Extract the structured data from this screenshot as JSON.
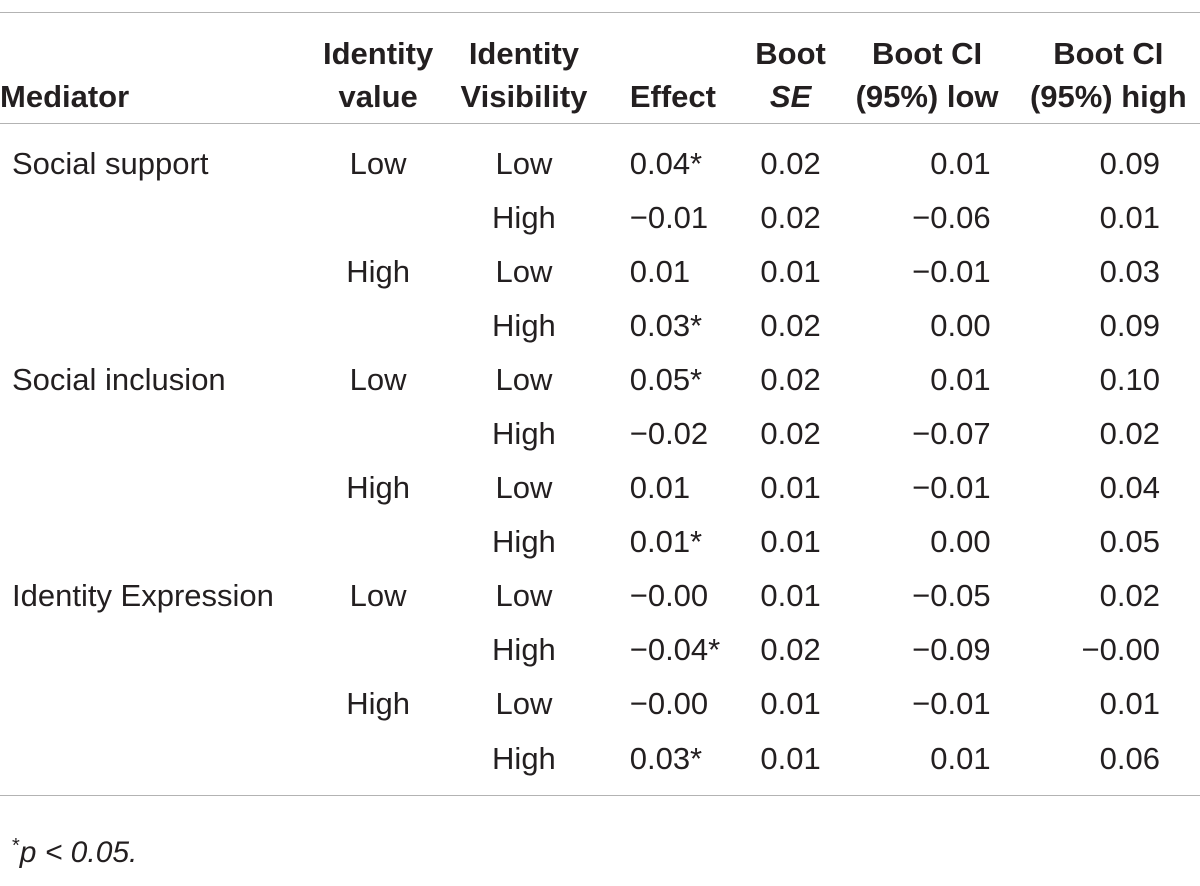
{
  "headers": {
    "mediator": "Mediator",
    "identity_value": [
      "Identity",
      "value"
    ],
    "identity_visibility": [
      "Identity",
      "Visibility"
    ],
    "effect": "Effect",
    "boot_se": [
      "Boot",
      "SE"
    ],
    "boot_ci_low": [
      "Boot CI",
      "(95%) low"
    ],
    "boot_ci_high": [
      "Boot CI",
      "(95%) high"
    ]
  },
  "rows": [
    {
      "mediator": "Social support",
      "value": "Low",
      "visibility": "Low",
      "effect": "0.04*",
      "se": "0.02",
      "low": "0.01",
      "high": "0.09"
    },
    {
      "mediator": "",
      "value": "",
      "visibility": "High",
      "effect": "−0.01",
      "se": "0.02",
      "low": "−0.06",
      "high": "0.01"
    },
    {
      "mediator": "",
      "value": "High",
      "visibility": "Low",
      "effect": "0.01",
      "se": "0.01",
      "low": "−0.01",
      "high": "0.03"
    },
    {
      "mediator": "",
      "value": "",
      "visibility": "High",
      "effect": "0.03*",
      "se": "0.02",
      "low": "0.00",
      "high": "0.09"
    },
    {
      "mediator": "Social inclusion",
      "value": "Low",
      "visibility": "Low",
      "effect": "0.05*",
      "se": "0.02",
      "low": "0.01",
      "high": "0.10"
    },
    {
      "mediator": "",
      "value": "",
      "visibility": "High",
      "effect": "−0.02",
      "se": "0.02",
      "low": "−0.07",
      "high": "0.02"
    },
    {
      "mediator": "",
      "value": "High",
      "visibility": "Low",
      "effect": "0.01",
      "se": "0.01",
      "low": "−0.01",
      "high": "0.04"
    },
    {
      "mediator": "",
      "value": "",
      "visibility": "High",
      "effect": "0.01*",
      "se": "0.01",
      "low": "0.00",
      "high": "0.05"
    },
    {
      "mediator": "Identity Expression",
      "value": "Low",
      "visibility": "Low",
      "effect": "−0.00",
      "se": "0.01",
      "low": "−0.05",
      "high": "0.02"
    },
    {
      "mediator": "",
      "value": "",
      "visibility": "High",
      "effect": "−0.04*",
      "se": "0.02",
      "low": "−0.09",
      "high": "−0.00"
    },
    {
      "mediator": "",
      "value": "High",
      "visibility": "Low",
      "effect": "−0.00",
      "se": "0.01",
      "low": "−0.01",
      "high": "0.01"
    },
    {
      "mediator": "",
      "value": "",
      "visibility": "High",
      "effect": "0.03*",
      "se": "0.01",
      "low": "0.01",
      "high": "0.06"
    }
  ],
  "footnote": {
    "mark": "*",
    "text": "p < 0.05."
  }
}
